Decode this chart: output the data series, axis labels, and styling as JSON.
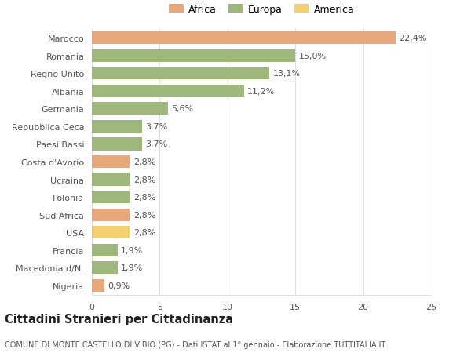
{
  "categories": [
    "Marocco",
    "Romania",
    "Regno Unito",
    "Albania",
    "Germania",
    "Repubblica Ceca",
    "Paesi Bassi",
    "Costa d'Avorio",
    "Ucraina",
    "Polonia",
    "Sud Africa",
    "USA",
    "Francia",
    "Macedonia d/N.",
    "Nigeria"
  ],
  "values": [
    22.4,
    15.0,
    13.1,
    11.2,
    5.6,
    3.7,
    3.7,
    2.8,
    2.8,
    2.8,
    2.8,
    2.8,
    1.9,
    1.9,
    0.9
  ],
  "labels": [
    "22,4%",
    "15,0%",
    "13,1%",
    "11,2%",
    "5,6%",
    "3,7%",
    "3,7%",
    "2,8%",
    "2,8%",
    "2,8%",
    "2,8%",
    "2,8%",
    "1,9%",
    "1,9%",
    "0,9%"
  ],
  "colors": [
    "#e8a87c",
    "#9db87a",
    "#9db87a",
    "#9db87a",
    "#9db87a",
    "#9db87a",
    "#9db87a",
    "#e8a87c",
    "#9db87a",
    "#9db87a",
    "#e8a87c",
    "#f5d06e",
    "#9db87a",
    "#9db87a",
    "#e8a87c"
  ],
  "legend_labels": [
    "Africa",
    "Europa",
    "America"
  ],
  "legend_colors": [
    "#e8a87c",
    "#9db87a",
    "#f5d06e"
  ],
  "title": "Cittadini Stranieri per Cittadinanza",
  "subtitle": "COMUNE DI MONTE CASTELLO DI VIBIO (PG) - Dati ISTAT al 1° gennaio - Elaborazione TUTTITALIA.IT",
  "xlim": [
    0,
    25
  ],
  "xticks": [
    0,
    5,
    10,
    15,
    20,
    25
  ],
  "bg_color": "#ffffff",
  "grid_color": "#e0e0e0",
  "text_color": "#555555",
  "label_fontsize": 8,
  "tick_fontsize": 8,
  "title_fontsize": 10.5,
  "subtitle_fontsize": 7.0,
  "bar_height": 0.72
}
